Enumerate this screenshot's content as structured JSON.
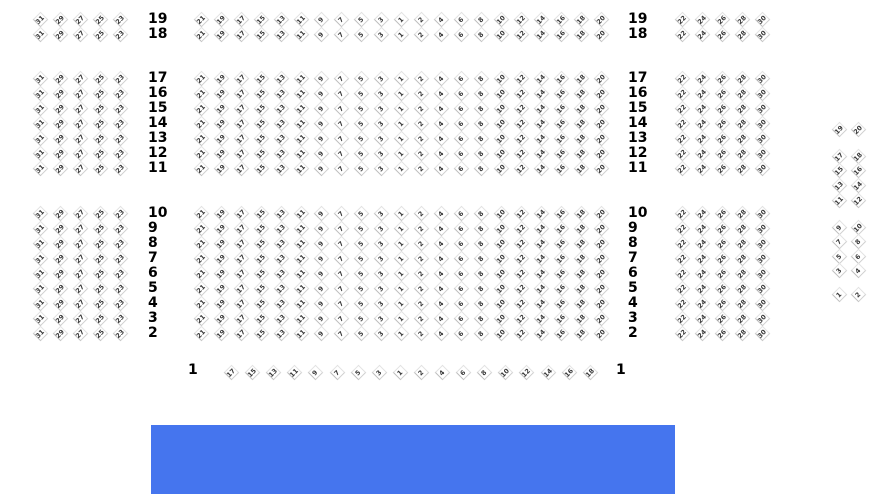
{
  "colors": {
    "stage": "#4575ee",
    "seat_text": "#3a3a3a",
    "seat_border": "#d0d0d0"
  },
  "left_section_seats": [
    "31",
    "29",
    "27",
    "25",
    "23"
  ],
  "center_section_seats": [
    "21",
    "19",
    "17",
    "15",
    "13",
    "11",
    "9",
    "7",
    "5",
    "3",
    "1",
    "2",
    "4",
    "6",
    "8",
    "10",
    "12",
    "14",
    "16",
    "18",
    "20"
  ],
  "right_section_seats": [
    "22",
    "24",
    "26",
    "28",
    "30"
  ],
  "rows": [
    "19",
    "18",
    "17",
    "16",
    "15",
    "14",
    "13",
    "12",
    "11",
    "10",
    "9",
    "8",
    "7",
    "6",
    "5",
    "4",
    "3",
    "2"
  ],
  "row_1": {
    "label": "1",
    "seats": [
      "17",
      "15",
      "13",
      "11",
      "9",
      "7",
      "5",
      "3",
      "1",
      "2",
      "4",
      "6",
      "8",
      "10",
      "12",
      "14",
      "16",
      "18"
    ]
  },
  "side_box": [
    [
      "19",
      "20"
    ],
    [
      "17",
      "18"
    ],
    [
      "15",
      "16"
    ],
    [
      "13",
      "14"
    ],
    [
      "11",
      "12"
    ],
    [
      "9",
      "10"
    ],
    [
      "7",
      "8"
    ],
    [
      "5",
      "6"
    ],
    [
      "3",
      "4"
    ],
    [
      "1",
      "2"
    ]
  ],
  "stage": {
    "label": ""
  }
}
